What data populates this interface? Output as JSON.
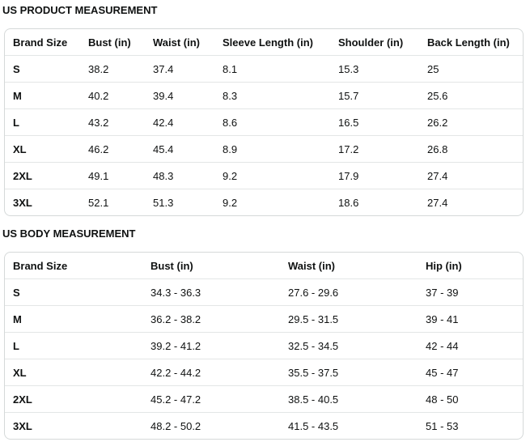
{
  "product_table": {
    "title": "US PRODUCT MEASUREMENT",
    "header": [
      "Brand Size",
      "Bust (in)",
      "Waist (in)",
      "Sleeve Length (in)",
      "Shoulder (in)",
      "Back Length (in)"
    ],
    "rows": [
      [
        "S",
        "38.2",
        "37.4",
        "8.1",
        "15.3",
        "25"
      ],
      [
        "M",
        "40.2",
        "39.4",
        "8.3",
        "15.7",
        "25.6"
      ],
      [
        "L",
        "43.2",
        "42.4",
        "8.6",
        "16.5",
        "26.2"
      ],
      [
        "XL",
        "46.2",
        "45.4",
        "8.9",
        "17.2",
        "26.8"
      ],
      [
        "2XL",
        "49.1",
        "48.3",
        "9.2",
        "17.9",
        "27.4"
      ],
      [
        "3XL",
        "52.1",
        "51.3",
        "9.2",
        "18.6",
        "27.4"
      ]
    ]
  },
  "body_table": {
    "title": "US BODY MEASUREMENT",
    "header": [
      "Brand Size",
      "Bust (in)",
      "Waist (in)",
      "Hip (in)"
    ],
    "rows": [
      [
        "S",
        "34.3 - 36.3",
        "27.6 - 29.6",
        "37 - 39"
      ],
      [
        "M",
        "36.2 - 38.2",
        "29.5 - 31.5",
        "39 - 41"
      ],
      [
        "L",
        "39.2 - 41.2",
        "32.5 - 34.5",
        "42 - 44"
      ],
      [
        "XL",
        "42.2 - 44.2",
        "35.5 - 37.5",
        "45 - 47"
      ],
      [
        "2XL",
        "45.2 - 47.2",
        "38.5 - 40.5",
        "48 - 50"
      ],
      [
        "3XL",
        "48.2 - 50.2",
        "41.5 - 43.5",
        "51 - 53"
      ]
    ]
  }
}
